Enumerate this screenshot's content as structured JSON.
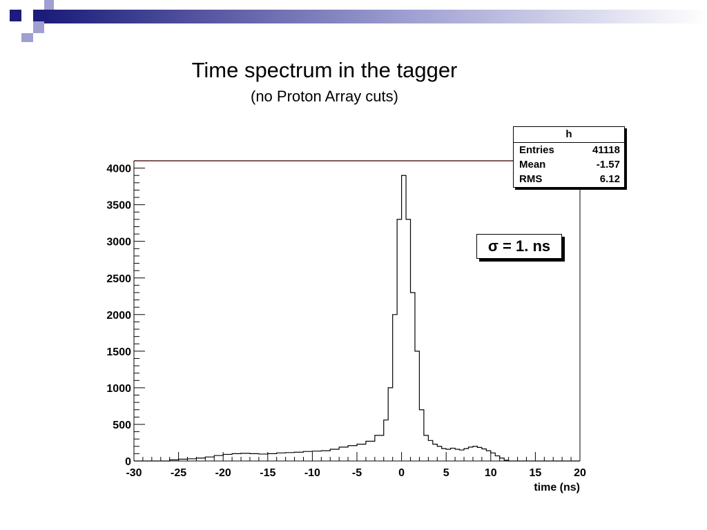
{
  "slide": {
    "title": "Time spectrum in the tagger",
    "subtitle": "(no Proton Array cuts)"
  },
  "colors": {
    "accent": "#1c1c7a",
    "accent_light": "#9f9fd2",
    "frame_top": "#5a1f1f"
  },
  "stats_box": {
    "name": "h",
    "rows": [
      {
        "label": "Entries",
        "value": "41118"
      },
      {
        "label": "Mean",
        "value": "-1.57"
      },
      {
        "label": "RMS",
        "value": "6.12"
      }
    ]
  },
  "fit_annotation": "σ = 1. ns",
  "chart_data": {
    "type": "histogram",
    "title": "",
    "xlabel": "time (ns)",
    "ylabel": "",
    "xlim": [
      -30,
      20
    ],
    "ylim": [
      0,
      4100
    ],
    "x_ticks": [
      -30,
      -25,
      -20,
      -15,
      -10,
      -5,
      0,
      5,
      10,
      15,
      20
    ],
    "y_ticks": [
      0,
      500,
      1000,
      1500,
      2000,
      2500,
      3000,
      3500,
      4000
    ],
    "grid": false,
    "bin_width": 0.5,
    "bin_start": -30,
    "values": [
      0,
      0,
      0,
      0,
      0,
      0,
      0,
      0,
      0,
      0,
      0,
      0,
      0,
      0,
      0,
      0,
      0,
      0,
      0,
      0,
      0,
      0,
      0,
      0,
      0,
      0,
      0,
      0,
      0,
      0,
      0,
      0,
      0,
      0,
      0,
      0,
      0,
      0,
      0,
      0,
      0,
      0,
      0,
      0,
      0,
      0,
      0,
      0,
      0,
      0,
      0,
      0,
      0,
      0,
      0,
      0,
      0,
      0,
      0,
      0,
      0,
      0,
      0,
      0,
      0,
      0,
      0,
      0,
      0,
      0,
      0,
      0,
      0,
      0,
      0,
      0,
      0,
      0,
      0,
      0,
      0,
      0,
      0,
      0,
      0,
      0,
      0,
      0,
      0,
      0,
      0,
      0,
      0,
      0,
      0,
      0,
      0,
      0,
      0,
      0
    ],
    "bins": [
      [
        -30,
        0
      ],
      [
        -29,
        0
      ],
      [
        -28,
        0
      ],
      [
        -27,
        0
      ],
      [
        -26,
        15
      ],
      [
        -25,
        25
      ],
      [
        -24,
        30
      ],
      [
        -23,
        40
      ],
      [
        -22,
        55
      ],
      [
        -21,
        75
      ],
      [
        -20,
        90
      ],
      [
        -19,
        100
      ],
      [
        -18,
        105
      ],
      [
        -17,
        100
      ],
      [
        -16,
        95
      ],
      [
        -15,
        100
      ],
      [
        -14,
        110
      ],
      [
        -13,
        115
      ],
      [
        -12,
        120
      ],
      [
        -11,
        130
      ],
      [
        -10,
        135
      ],
      [
        -9,
        140
      ],
      [
        -8,
        160
      ],
      [
        -7,
        190
      ],
      [
        -6,
        210
      ],
      [
        -5,
        230
      ],
      [
        -4,
        270
      ],
      [
        -3,
        350
      ],
      [
        -2,
        560
      ],
      [
        -1.5,
        1000
      ],
      [
        -1,
        2000
      ],
      [
        -0.5,
        3300
      ],
      [
        0,
        3900
      ],
      [
        0.5,
        3300
      ],
      [
        1,
        2300
      ],
      [
        1.5,
        1500
      ],
      [
        2,
        700
      ],
      [
        2.5,
        350
      ],
      [
        3,
        280
      ],
      [
        3.5,
        230
      ],
      [
        4,
        200
      ],
      [
        4.5,
        170
      ],
      [
        5,
        160
      ],
      [
        5.5,
        175
      ],
      [
        6,
        160
      ],
      [
        6.5,
        150
      ],
      [
        7,
        170
      ],
      [
        7.5,
        190
      ],
      [
        8,
        200
      ],
      [
        8.5,
        185
      ],
      [
        9,
        165
      ],
      [
        9.5,
        140
      ],
      [
        10,
        110
      ],
      [
        10.5,
        70
      ],
      [
        11,
        40
      ],
      [
        11.5,
        10
      ],
      [
        12,
        0
      ],
      [
        20,
        0
      ]
    ]
  }
}
